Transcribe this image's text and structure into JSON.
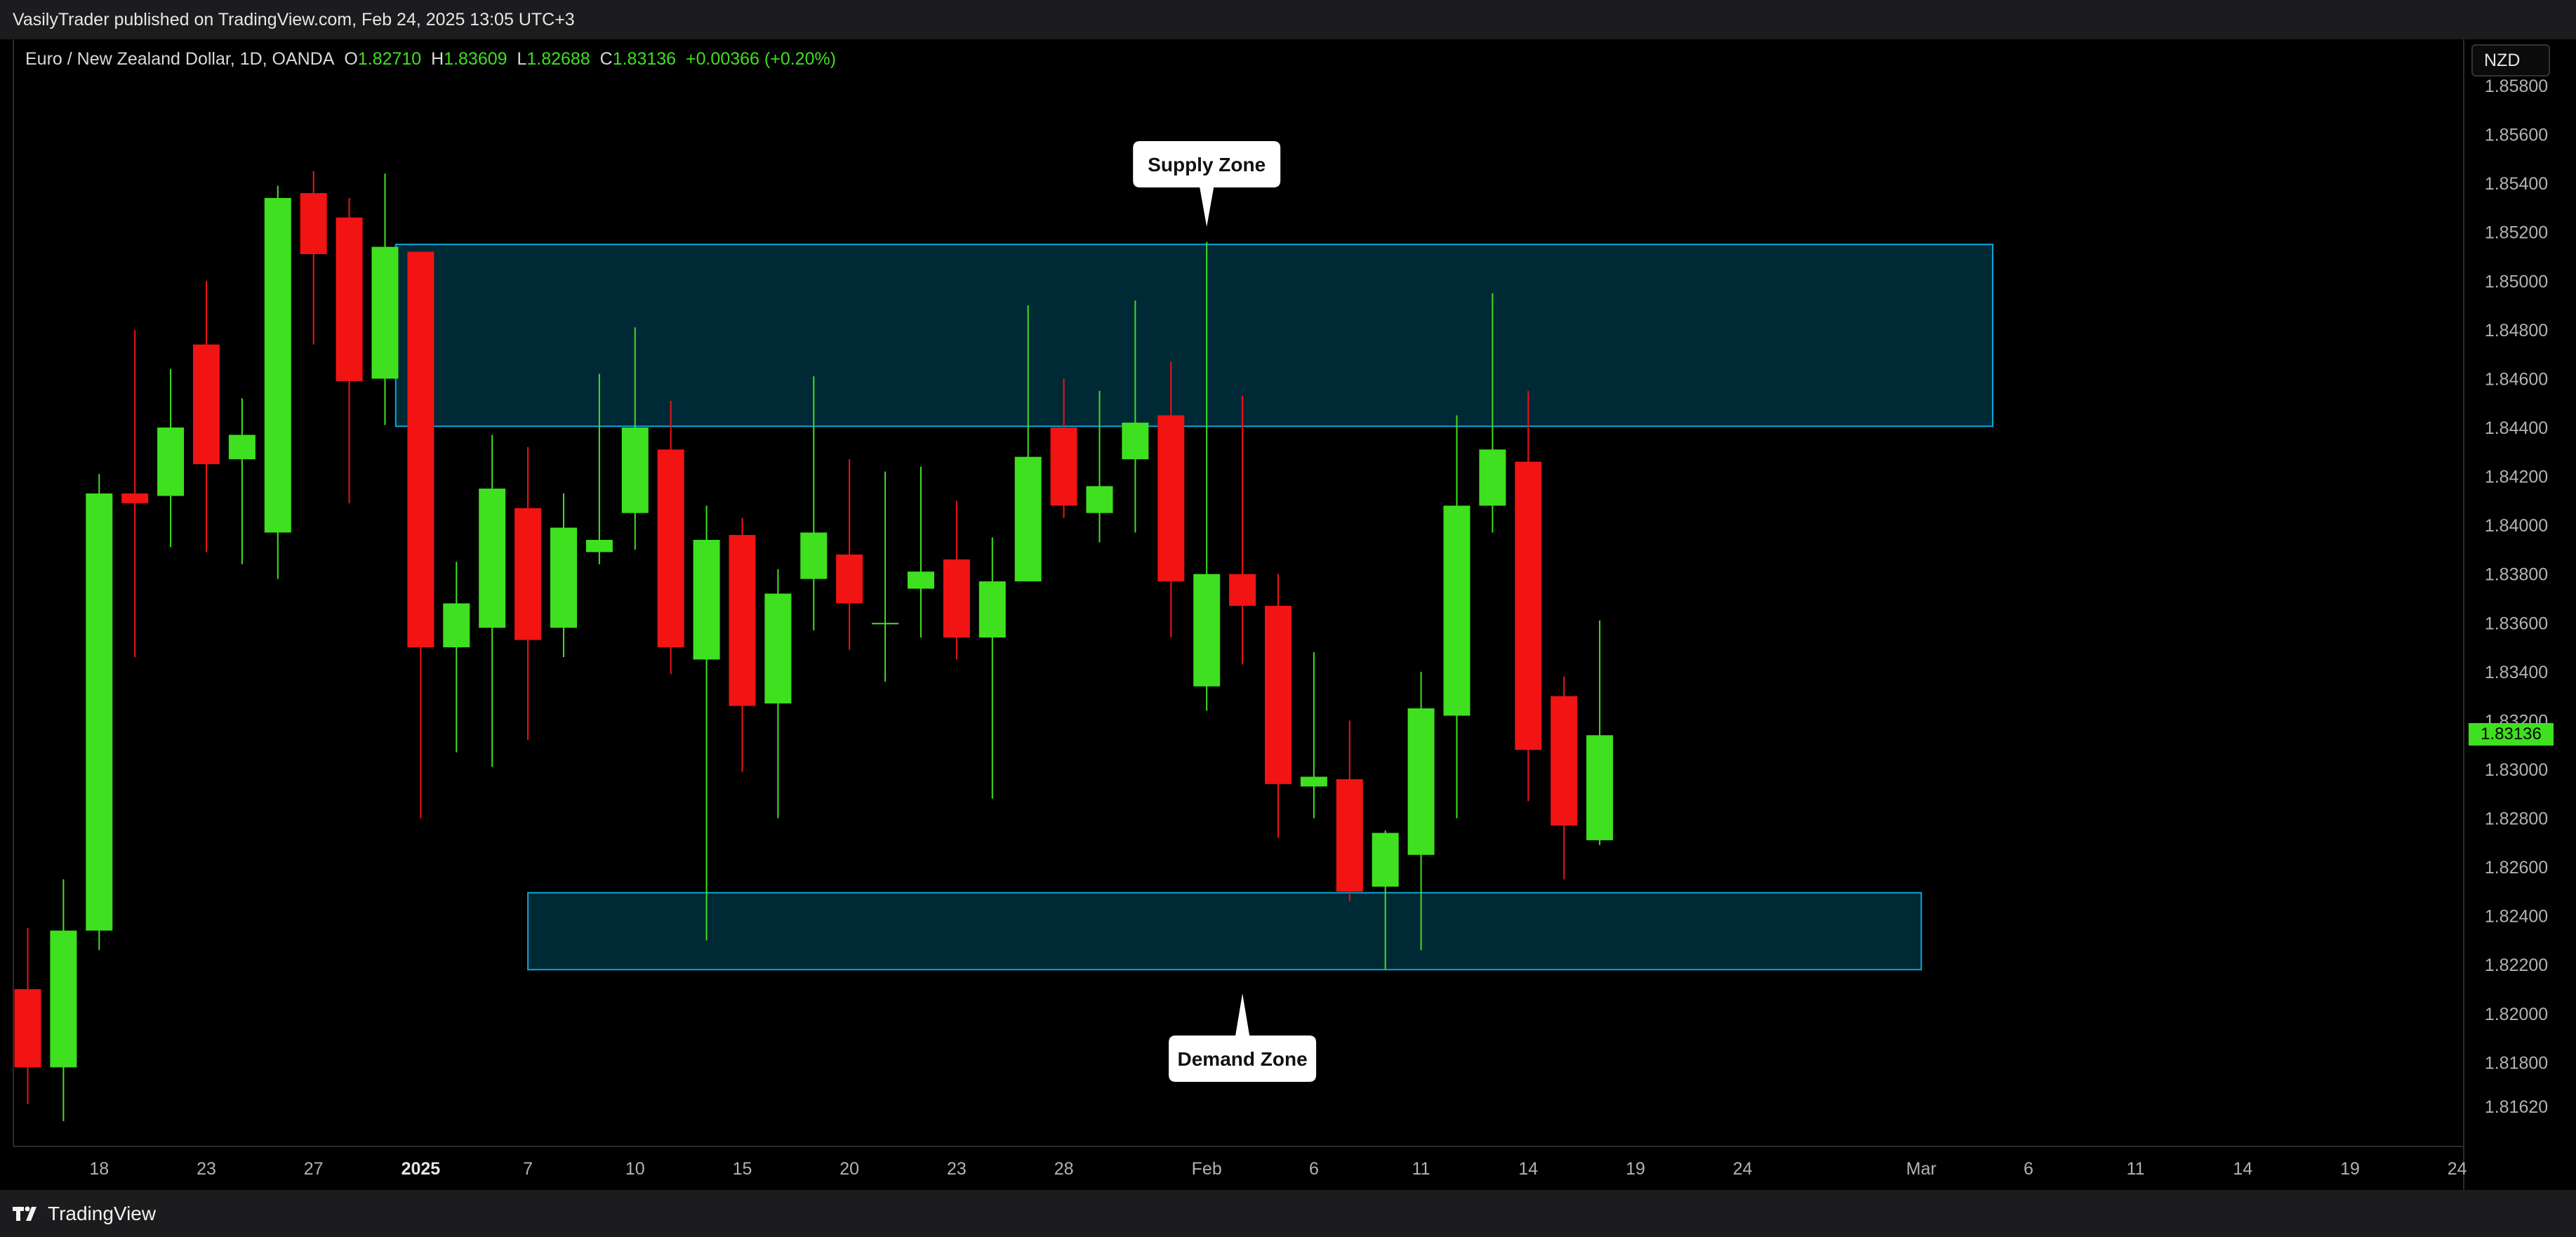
{
  "header": {
    "published_text": "VasilyTrader published on TradingView.com, Feb 24, 2025 13:05 UTC+3"
  },
  "legend": {
    "symbol": "Euro / New Zealand Dollar, 1D, OANDA",
    "open_label": "O",
    "open": "1.82710",
    "high_label": "H",
    "high": "1.83609",
    "low_label": "L",
    "low": "1.82688",
    "close_label": "C",
    "close": "1.83136",
    "change": "+0.00366 (+0.20%)"
  },
  "currency_button": "NZD",
  "current_price": "1.83136",
  "footer": {
    "brand": "TradingView",
    "logo_icon": "tradingview-logo-icon"
  },
  "colors": {
    "up": "#3fe01f",
    "down": "#f21313",
    "zone_fill": "#00303f",
    "zone_border": "#0ea5d8",
    "background": "#000000",
    "axis_text": "#b2b2b2"
  },
  "chart_data": {
    "type": "candlestick",
    "symbol": "EURNZD",
    "timeframe": "1D",
    "y_axis": {
      "ticks": [
        "1.81620",
        "1.81800",
        "1.82000",
        "1.82200",
        "1.82400",
        "1.82600",
        "1.82800",
        "1.83000",
        "1.83200",
        "1.83400",
        "1.83600",
        "1.83800",
        "1.84000",
        "1.84200",
        "1.84400",
        "1.84600",
        "1.84800",
        "1.85000",
        "1.85200",
        "1.85400",
        "1.85600",
        "1.85800"
      ],
      "ylim": [
        1.8152,
        1.8594
      ]
    },
    "x_axis": {
      "ticks": [
        {
          "i": 2,
          "label": "18"
        },
        {
          "i": 5,
          "label": "23"
        },
        {
          "i": 8,
          "label": "27"
        },
        {
          "i": 11,
          "label": "2025",
          "bold": true
        },
        {
          "i": 14,
          "label": "7"
        },
        {
          "i": 17,
          "label": "10"
        },
        {
          "i": 20,
          "label": "15"
        },
        {
          "i": 23,
          "label": "20"
        },
        {
          "i": 26,
          "label": "23"
        },
        {
          "i": 29,
          "label": "28"
        },
        {
          "i": 33,
          "label": "Feb"
        },
        {
          "i": 36,
          "label": "6"
        },
        {
          "i": 39,
          "label": "11"
        },
        {
          "i": 42,
          "label": "14"
        },
        {
          "i": 45,
          "label": "19"
        },
        {
          "i": 48,
          "label": "24"
        },
        {
          "i": 53,
          "label": "Mar"
        },
        {
          "i": 56,
          "label": "6"
        },
        {
          "i": 59,
          "label": "11"
        },
        {
          "i": 62,
          "label": "14"
        },
        {
          "i": 65,
          "label": "19"
        },
        {
          "i": 68,
          "label": "24"
        }
      ]
    },
    "candles": [
      {
        "o": 1.821,
        "h": 1.8235,
        "l": 1.8163,
        "c": 1.8178
      },
      {
        "o": 1.8178,
        "h": 1.8255,
        "l": 1.8156,
        "c": 1.8234
      },
      {
        "o": 1.8234,
        "h": 1.8421,
        "l": 1.8226,
        "c": 1.8413
      },
      {
        "o": 1.8413,
        "h": 1.848,
        "l": 1.8346,
        "c": 1.8409
      },
      {
        "o": 1.8412,
        "h": 1.8464,
        "l": 1.8391,
        "c": 1.844
      },
      {
        "o": 1.8474,
        "h": 1.85,
        "l": 1.8389,
        "c": 1.8425
      },
      {
        "o": 1.8427,
        "h": 1.8452,
        "l": 1.8384,
        "c": 1.8437
      },
      {
        "o": 1.8397,
        "h": 1.8539,
        "l": 1.8378,
        "c": 1.8534
      },
      {
        "o": 1.8536,
        "h": 1.8545,
        "l": 1.8474,
        "c": 1.8511
      },
      {
        "o": 1.8526,
        "h": 1.8534,
        "l": 1.8409,
        "c": 1.8459
      },
      {
        "o": 1.846,
        "h": 1.8544,
        "l": 1.8441,
        "c": 1.8514
      },
      {
        "o": 1.8512,
        "h": 1.8512,
        "l": 1.828,
        "c": 1.835
      },
      {
        "o": 1.835,
        "h": 1.8385,
        "l": 1.8307,
        "c": 1.8368
      },
      {
        "o": 1.8358,
        "h": 1.8437,
        "l": 1.8301,
        "c": 1.8415
      },
      {
        "o": 1.8407,
        "h": 1.8432,
        "l": 1.8312,
        "c": 1.8353
      },
      {
        "o": 1.8358,
        "h": 1.8413,
        "l": 1.8346,
        "c": 1.8399
      },
      {
        "o": 1.8389,
        "h": 1.8462,
        "l": 1.8384,
        "c": 1.8394
      },
      {
        "o": 1.8405,
        "h": 1.8481,
        "l": 1.839,
        "c": 1.844
      },
      {
        "o": 1.8431,
        "h": 1.8451,
        "l": 1.8339,
        "c": 1.835
      },
      {
        "o": 1.8345,
        "h": 1.8408,
        "l": 1.823,
        "c": 1.8394
      },
      {
        "o": 1.8396,
        "h": 1.8403,
        "l": 1.8299,
        "c": 1.8326
      },
      {
        "o": 1.8327,
        "h": 1.8382,
        "l": 1.828,
        "c": 1.8372
      },
      {
        "o": 1.8378,
        "h": 1.8461,
        "l": 1.8357,
        "c": 1.8397
      },
      {
        "o": 1.8388,
        "h": 1.8427,
        "l": 1.8349,
        "c": 1.8368
      },
      {
        "o": 1.836,
        "h": 1.8422,
        "l": 1.8336,
        "c": 1.836
      },
      {
        "o": 1.8374,
        "h": 1.8424,
        "l": 1.8354,
        "c": 1.8381
      },
      {
        "o": 1.8386,
        "h": 1.841,
        "l": 1.8345,
        "c": 1.8354
      },
      {
        "o": 1.8354,
        "h": 1.8395,
        "l": 1.8288,
        "c": 1.8377
      },
      {
        "o": 1.8377,
        "h": 1.849,
        "l": 1.8377,
        "c": 1.8428
      },
      {
        "o": 1.844,
        "h": 1.846,
        "l": 1.8403,
        "c": 1.8408
      },
      {
        "o": 1.8405,
        "h": 1.8455,
        "l": 1.8393,
        "c": 1.8416
      },
      {
        "o": 1.8427,
        "h": 1.8492,
        "l": 1.8397,
        "c": 1.8442
      },
      {
        "o": 1.8445,
        "h": 1.8467,
        "l": 1.8354,
        "c": 1.8377
      },
      {
        "o": 1.8334,
        "h": 1.8516,
        "l": 1.8324,
        "c": 1.838
      },
      {
        "o": 1.838,
        "h": 1.8453,
        "l": 1.8343,
        "c": 1.8367
      },
      {
        "o": 1.8367,
        "h": 1.838,
        "l": 1.8272,
        "c": 1.8294
      },
      {
        "o": 1.8293,
        "h": 1.8348,
        "l": 1.828,
        "c": 1.8297
      },
      {
        "o": 1.8296,
        "h": 1.832,
        "l": 1.8246,
        "c": 1.825
      },
      {
        "o": 1.8252,
        "h": 1.8275,
        "l": 1.8218,
        "c": 1.8274
      },
      {
        "o": 1.8265,
        "h": 1.834,
        "l": 1.8226,
        "c": 1.8325
      },
      {
        "o": 1.8322,
        "h": 1.8445,
        "l": 1.828,
        "c": 1.8408
      },
      {
        "o": 1.8408,
        "h": 1.8495,
        "l": 1.8397,
        "c": 1.8431
      },
      {
        "o": 1.8426,
        "h": 1.8455,
        "l": 1.8287,
        "c": 1.8308
      },
      {
        "o": 1.833,
        "h": 1.8338,
        "l": 1.8255,
        "c": 1.8277
      },
      {
        "o": 1.8271,
        "h": 1.8361,
        "l": 1.8269,
        "c": 1.8314
      }
    ],
    "zones": [
      {
        "name": "Supply Zone",
        "top": 1.8515,
        "bottom": 1.84405,
        "start_i": 10.3,
        "end_i": 55.0,
        "label_pos": "above",
        "label_anchor_i": 33.0
      },
      {
        "name": "Demand Zone",
        "top": 1.82495,
        "bottom": 1.8218,
        "start_i": 14.0,
        "end_i": 53.0,
        "label_pos": "below",
        "label_anchor_i": 34.0
      }
    ],
    "last_price": 1.83136
  }
}
